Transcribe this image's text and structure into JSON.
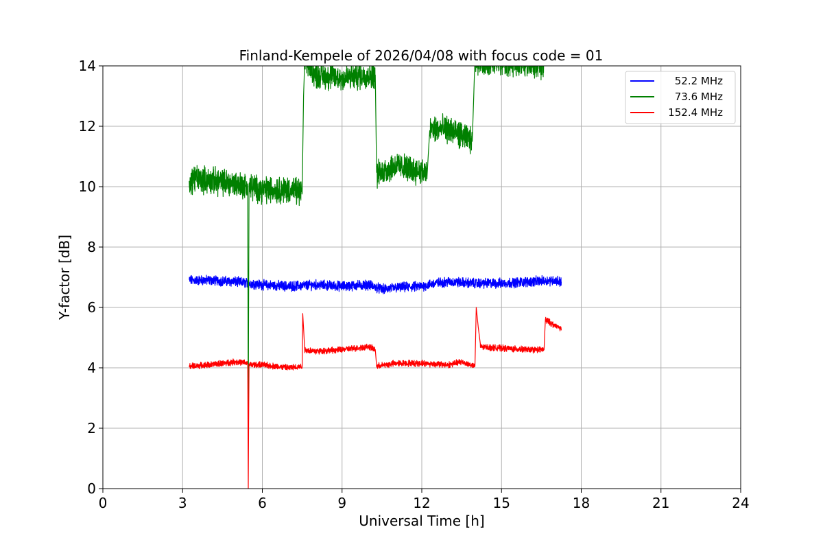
{
  "chart_data": {
    "type": "line",
    "title": "Finland-Kempele of 2026/04/08 with focus code = 01",
    "xlabel": "Universal Time [h]",
    "ylabel": "Y-factor [dB]",
    "xlim": [
      0,
      24
    ],
    "ylim": [
      0,
      14
    ],
    "xticks": [
      0,
      3,
      6,
      9,
      12,
      15,
      18,
      21,
      24
    ],
    "yticks": [
      0,
      2,
      4,
      6,
      8,
      10,
      12,
      14
    ],
    "grid": true,
    "legend_position": "top-right",
    "series": [
      {
        "name": "  52.2 MHz",
        "color": "#0000ff",
        "noise": 0.13,
        "x": [
          3.25,
          4.0,
          5.0,
          6.0,
          7.0,
          8.0,
          9.0,
          10.0,
          10.5,
          11.0,
          12.0,
          12.5,
          13.0,
          14.0,
          15.0,
          16.0,
          17.0,
          17.25
        ],
        "y": [
          6.9,
          6.9,
          6.85,
          6.75,
          6.7,
          6.75,
          6.7,
          6.75,
          6.6,
          6.65,
          6.7,
          6.8,
          6.85,
          6.8,
          6.8,
          6.85,
          6.9,
          6.85
        ]
      },
      {
        "name": "  73.6 MHz",
        "color": "#008000",
        "noise": 0.35,
        "x": [
          3.25,
          3.4,
          4.0,
          5.0,
          5.45,
          5.47,
          5.5,
          5.52,
          6.0,
          7.0,
          7.5,
          7.55,
          7.6,
          8.0,
          9.0,
          10.0,
          10.25,
          10.3,
          11.0,
          12.0,
          12.2,
          12.3,
          13.0,
          13.9,
          14.0,
          14.05,
          14.5,
          15.0,
          16.0,
          16.6
        ],
        "y": [
          9.9,
          10.3,
          10.2,
          10.1,
          10.0,
          2.0,
          10.0,
          10.0,
          9.9,
          9.9,
          9.8,
          13.0,
          14.2,
          13.7,
          13.6,
          13.7,
          13.7,
          10.4,
          10.7,
          10.5,
          10.4,
          11.9,
          11.9,
          11.5,
          14.3,
          14.2,
          14.1,
          14.1,
          14.1,
          14.0
        ]
      },
      {
        "name": " 152.4 MHz",
        "color": "#ff0000",
        "noise": 0.08,
        "x": [
          3.25,
          4.0,
          5.0,
          5.45,
          5.47,
          5.5,
          5.52,
          6.0,
          7.0,
          7.5,
          7.52,
          7.6,
          8.0,
          9.0,
          10.0,
          10.25,
          10.3,
          11.0,
          12.0,
          13.0,
          13.5,
          14.0,
          14.05,
          14.2,
          15.0,
          16.0,
          16.6,
          16.65,
          17.0,
          17.25
        ],
        "y": [
          4.05,
          4.1,
          4.2,
          4.15,
          0.0,
          4.15,
          4.1,
          4.1,
          4.0,
          4.05,
          5.8,
          4.6,
          4.55,
          4.6,
          4.7,
          4.6,
          4.05,
          4.15,
          4.15,
          4.1,
          4.2,
          4.05,
          6.0,
          4.7,
          4.65,
          4.6,
          4.6,
          5.6,
          5.4,
          5.3
        ]
      }
    ]
  }
}
